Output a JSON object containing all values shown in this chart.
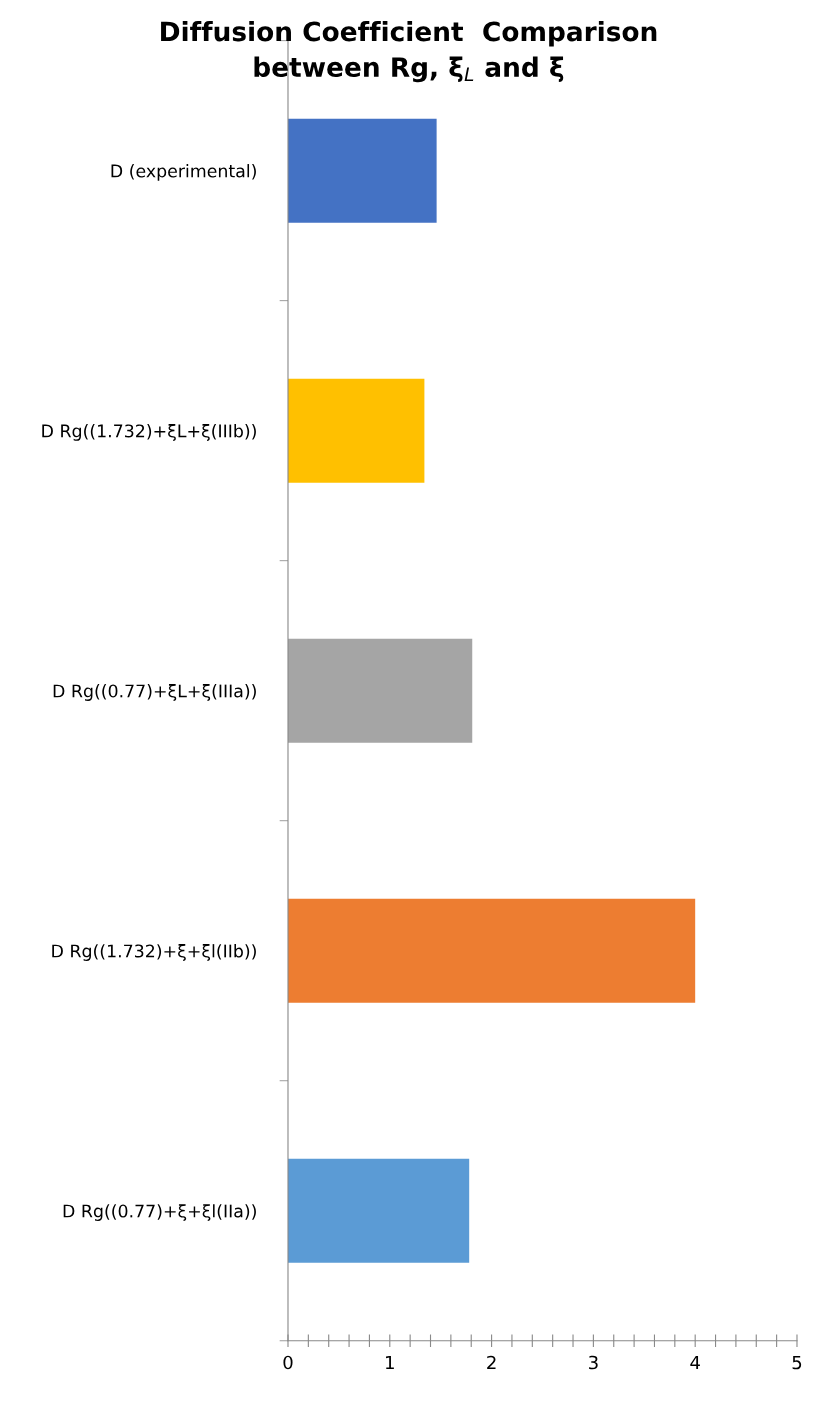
{
  "chart_data": {
    "type": "bar",
    "orientation": "horizontal",
    "title": "Diffusion Coefficient  Comparison\nbetween Rg, ξ$_{L}$ and ξ",
    "categories": [
      "D (experimental)",
      "D Rg((1.732)+ξL+ξ(IIIb))",
      "D Rg((0.77)+ξL+ξ(IIIa))",
      "D Rg((1.732)+ξ+ξl(IIb))",
      "D Rg((0.77)+ξ+ξl(IIa))"
    ],
    "values": [
      1.46,
      1.34,
      1.81,
      4.0,
      1.78
    ],
    "colors": [
      "#4472c4",
      "#ffc000",
      "#a5a5a5",
      "#ed7d31",
      "#5b9bd5"
    ],
    "xlim": [
      0,
      5
    ],
    "xticks": [
      0,
      {
        "value": 0.2,
        "label": null
      },
      {
        "value": 0.4,
        "label": null
      },
      {
        "value": 0.6,
        "label": null
      },
      {
        "value": 0.8,
        "label": null
      },
      1,
      {
        "value": 1.2,
        "label": null
      },
      {
        "value": 1.4,
        "label": null
      },
      {
        "value": 1.6,
        "label": null
      },
      {
        "value": 1.8,
        "label": null
      },
      2,
      {
        "value": 2.2,
        "label": null
      },
      {
        "value": 2.4,
        "label": null
      },
      {
        "value": 2.6,
        "label": null
      },
      {
        "value": 2.8,
        "label": null
      },
      3,
      {
        "value": 3.2,
        "label": null
      },
      {
        "value": 3.4,
        "label": null
      },
      {
        "value": 3.6,
        "label": null
      },
      {
        "value": 3.8,
        "label": null
      },
      4,
      {
        "value": 4.2,
        "label": null
      },
      {
        "value": 4.4,
        "label": null
      },
      {
        "value": 4.6,
        "label": null
      },
      {
        "value": 4.8,
        "label": null
      },
      5
    ],
    "grid": false,
    "legend": false
  }
}
